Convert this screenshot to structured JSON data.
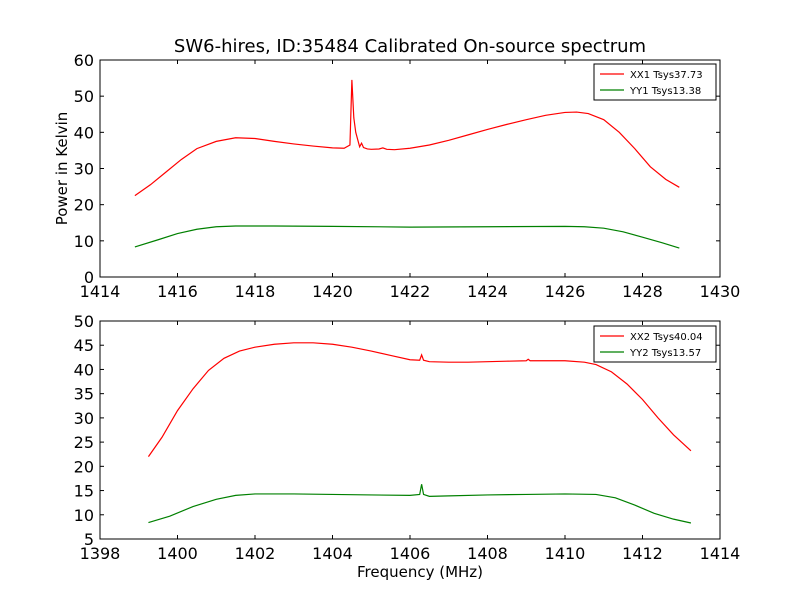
{
  "chart_data": [
    {
      "type": "line",
      "title": "SW6-hires, ID:35484 Calibrated On-source spectrum",
      "xlabel": "",
      "ylabel": "Power in Kelvin",
      "xlim": [
        1414,
        1430
      ],
      "ylim": [
        0,
        60
      ],
      "xticks": [
        1414,
        1416,
        1418,
        1420,
        1422,
        1424,
        1426,
        1428,
        1430
      ],
      "yticks": [
        0,
        10,
        20,
        30,
        40,
        50,
        60
      ],
      "legend_position": "top-right",
      "series": [
        {
          "name": "XX1 Tsys37.73",
          "color": "#ff0000",
          "x": [
            1414.9,
            1415.3,
            1415.7,
            1416.1,
            1416.5,
            1417.0,
            1417.5,
            1418.0,
            1418.5,
            1419.0,
            1419.5,
            1420.0,
            1420.3,
            1420.45,
            1420.5,
            1420.55,
            1420.6,
            1420.7,
            1420.75,
            1420.8,
            1420.9,
            1421.0,
            1421.2,
            1421.3,
            1421.4,
            1421.6,
            1422.0,
            1422.5,
            1423.0,
            1423.5,
            1424.0,
            1424.5,
            1425.0,
            1425.5,
            1426.0,
            1426.3,
            1426.6,
            1427.0,
            1427.4,
            1427.8,
            1428.2,
            1428.6,
            1428.95
          ],
          "y": [
            22.5,
            25.5,
            29.0,
            32.5,
            35.5,
            37.5,
            38.5,
            38.3,
            37.5,
            36.8,
            36.2,
            35.7,
            35.6,
            36.5,
            54.5,
            44.0,
            40.0,
            36.0,
            37.0,
            35.8,
            35.4,
            35.3,
            35.4,
            35.7,
            35.3,
            35.2,
            35.6,
            36.5,
            37.8,
            39.3,
            40.8,
            42.2,
            43.5,
            44.7,
            45.5,
            45.6,
            45.2,
            43.5,
            40.0,
            35.5,
            30.5,
            27.0,
            24.8
          ]
        },
        {
          "name": "YY1 Tsys13.38",
          "color": "#008000",
          "x": [
            1414.9,
            1415.5,
            1416.0,
            1416.5,
            1417.0,
            1417.5,
            1418.5,
            1420.0,
            1422.0,
            1424.0,
            1426.0,
            1426.5,
            1427.0,
            1427.5,
            1428.0,
            1428.5,
            1428.95
          ],
          "y": [
            8.3,
            10.3,
            12.0,
            13.2,
            13.9,
            14.1,
            14.1,
            14.0,
            13.8,
            13.9,
            14.0,
            13.9,
            13.5,
            12.5,
            11.0,
            9.5,
            8.0
          ]
        }
      ]
    },
    {
      "type": "line",
      "title": "",
      "xlabel": "Frequency (MHz)",
      "ylabel": "",
      "xlim": [
        1398,
        1414
      ],
      "ylim": [
        5,
        50
      ],
      "xticks": [
        1398,
        1400,
        1402,
        1404,
        1406,
        1408,
        1410,
        1412,
        1414
      ],
      "yticks": [
        5,
        10,
        15,
        20,
        25,
        30,
        35,
        40,
        45,
        50
      ],
      "legend_position": "top-right",
      "series": [
        {
          "name": "XX2 Tsys40.04",
          "color": "#ff0000",
          "x": [
            1399.25,
            1399.6,
            1400.0,
            1400.4,
            1400.8,
            1401.2,
            1401.6,
            1402.0,
            1402.5,
            1403.0,
            1403.5,
            1404.0,
            1404.5,
            1405.0,
            1405.5,
            1406.0,
            1406.25,
            1406.3,
            1406.35,
            1406.5,
            1407.0,
            1407.5,
            1408.0,
            1408.5,
            1409.0,
            1409.05,
            1409.1,
            1409.5,
            1410.0,
            1410.5,
            1410.8,
            1411.2,
            1411.6,
            1412.0,
            1412.4,
            1412.8,
            1413.25
          ],
          "y": [
            22.0,
            26.0,
            31.5,
            36.0,
            39.8,
            42.3,
            43.8,
            44.6,
            45.2,
            45.5,
            45.5,
            45.2,
            44.6,
            43.8,
            42.9,
            42.0,
            41.9,
            43.0,
            41.9,
            41.6,
            41.5,
            41.5,
            41.6,
            41.7,
            41.8,
            42.1,
            41.8,
            41.8,
            41.8,
            41.5,
            41.0,
            39.5,
            37.0,
            33.8,
            30.0,
            26.5,
            23.2
          ]
        },
        {
          "name": "YY2 Tsys13.57",
          "color": "#008000",
          "x": [
            1399.25,
            1399.8,
            1400.4,
            1401.0,
            1401.5,
            1402.0,
            1403.0,
            1404.0,
            1405.0,
            1406.0,
            1406.25,
            1406.3,
            1406.35,
            1406.5,
            1407.0,
            1408.0,
            1409.0,
            1410.0,
            1410.8,
            1411.3,
            1411.8,
            1412.3,
            1412.8,
            1413.25
          ],
          "y": [
            8.4,
            9.7,
            11.7,
            13.2,
            14.0,
            14.3,
            14.3,
            14.2,
            14.1,
            14.0,
            14.2,
            16.3,
            14.2,
            13.8,
            13.9,
            14.1,
            14.2,
            14.3,
            14.2,
            13.5,
            12.0,
            10.3,
            9.1,
            8.3
          ]
        }
      ]
    }
  ]
}
